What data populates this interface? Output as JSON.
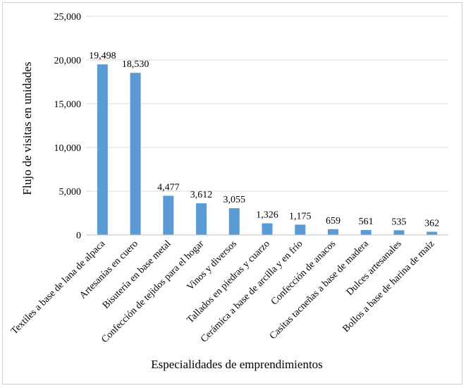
{
  "chart_data": {
    "type": "bar",
    "title": "",
    "xlabel": "Especialidades de emprendimientos",
    "ylabel": "Flujo de visitas en unidades",
    "ylim": [
      0,
      25000
    ],
    "yticks": [
      0,
      5000,
      10000,
      15000,
      20000,
      25000
    ],
    "ytick_labels": [
      "0",
      "5,000",
      "10,000",
      "15,000",
      "20,000",
      "25,000"
    ],
    "grid": true,
    "bar_color": "#5b9bd5",
    "categories": [
      "Textiles a base de lana de alpaca",
      "Artesanías en cuero",
      "Bisutería en base metal",
      "Confección de tejidos para el hogar",
      "Vinos y diversos",
      "Tallados en piedras y cuarzo",
      "Cerámica a base de arcilla y en frío",
      "Confección de anacos",
      "Casitas tacneñas a base de madera",
      "Dulces artesanales",
      "Bollos a base de harina de maíz"
    ],
    "values": [
      19498,
      18530,
      4477,
      3612,
      3055,
      1326,
      1175,
      659,
      561,
      535,
      362
    ],
    "data_labels": [
      "19,498",
      "18,530",
      "4,477",
      "3,612",
      "3,055",
      "1,326",
      "1,175",
      "659",
      "561",
      "535",
      "362"
    ]
  }
}
